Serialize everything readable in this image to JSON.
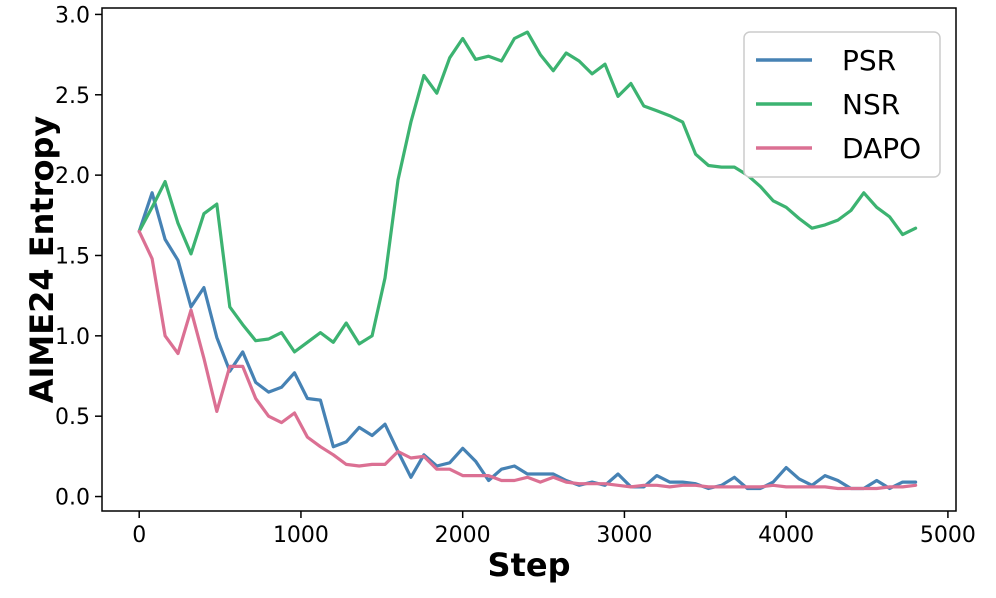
{
  "chart_data": {
    "type": "line",
    "xlabel": "Step",
    "ylabel": "AIME24 Entropy",
    "xlim": [
      -230,
      5050
    ],
    "ylim": [
      -0.09,
      3.04
    ],
    "xticks": [
      0,
      1000,
      2000,
      3000,
      4000,
      5000
    ],
    "yticks": [
      0.0,
      0.5,
      1.0,
      1.5,
      2.0,
      2.5,
      3.0
    ],
    "xtick_labels": [
      "0",
      "1000",
      "2000",
      "3000",
      "4000",
      "5000"
    ],
    "ytick_labels": [
      "0.0",
      "0.5",
      "1.0",
      "1.5",
      "2.0",
      "2.5",
      "3.0"
    ],
    "grid": false,
    "legend_position": "top-right",
    "x": [
      0,
      80,
      160,
      240,
      320,
      400,
      480,
      560,
      640,
      720,
      800,
      880,
      960,
      1040,
      1120,
      1200,
      1280,
      1360,
      1440,
      1520,
      1600,
      1680,
      1760,
      1840,
      1920,
      2000,
      2080,
      2160,
      2240,
      2320,
      2400,
      2480,
      2560,
      2640,
      2720,
      2800,
      2880,
      2960,
      3040,
      3120,
      3200,
      3280,
      3360,
      3440,
      3520,
      3600,
      3680,
      3760,
      3840,
      3920,
      4000,
      4080,
      4160,
      4240,
      4320,
      4400,
      4480,
      4560,
      4640,
      4720,
      4800
    ],
    "series": [
      {
        "name": "PSR",
        "color": "#4682b4",
        "values": [
          1.65,
          1.89,
          1.6,
          1.47,
          1.18,
          1.3,
          0.99,
          0.78,
          0.9,
          0.71,
          0.65,
          0.68,
          0.77,
          0.61,
          0.6,
          0.31,
          0.34,
          0.43,
          0.38,
          0.45,
          0.28,
          0.12,
          0.26,
          0.19,
          0.21,
          0.3,
          0.22,
          0.1,
          0.17,
          0.19,
          0.14,
          0.14,
          0.14,
          0.1,
          0.07,
          0.09,
          0.07,
          0.14,
          0.06,
          0.06,
          0.13,
          0.09,
          0.09,
          0.08,
          0.05,
          0.07,
          0.12,
          0.05,
          0.05,
          0.09,
          0.18,
          0.11,
          0.07,
          0.13,
          0.1,
          0.05,
          0.05,
          0.1,
          0.05,
          0.09,
          0.09
        ]
      },
      {
        "name": "NSR",
        "color": "#3cb371",
        "values": [
          1.65,
          1.8,
          1.96,
          1.7,
          1.51,
          1.76,
          1.82,
          1.18,
          1.07,
          0.97,
          0.98,
          1.02,
          0.9,
          0.96,
          1.02,
          0.96,
          1.08,
          0.95,
          1.0,
          1.36,
          1.97,
          2.33,
          2.62,
          2.51,
          2.73,
          2.85,
          2.72,
          2.74,
          2.71,
          2.85,
          2.89,
          2.75,
          2.65,
          2.76,
          2.71,
          2.63,
          2.69,
          2.49,
          2.57,
          2.43,
          2.4,
          2.37,
          2.33,
          2.13,
          2.06,
          2.05,
          2.05,
          2.0,
          1.93,
          1.84,
          1.8,
          1.73,
          1.67,
          1.69,
          1.72,
          1.78,
          1.89,
          1.8,
          1.74,
          1.63,
          1.67
        ]
      },
      {
        "name": "DAPO",
        "color": "#db7093",
        "values": [
          1.65,
          1.48,
          1.0,
          0.89,
          1.16,
          0.86,
          0.53,
          0.81,
          0.81,
          0.61,
          0.5,
          0.46,
          0.52,
          0.37,
          0.31,
          0.26,
          0.2,
          0.19,
          0.2,
          0.2,
          0.28,
          0.24,
          0.25,
          0.17,
          0.17,
          0.13,
          0.13,
          0.13,
          0.1,
          0.1,
          0.12,
          0.09,
          0.12,
          0.09,
          0.08,
          0.08,
          0.08,
          0.07,
          0.06,
          0.07,
          0.07,
          0.06,
          0.07,
          0.07,
          0.06,
          0.06,
          0.06,
          0.06,
          0.06,
          0.07,
          0.06,
          0.06,
          0.06,
          0.06,
          0.05,
          0.05,
          0.05,
          0.05,
          0.06,
          0.06,
          0.07
        ]
      }
    ]
  }
}
